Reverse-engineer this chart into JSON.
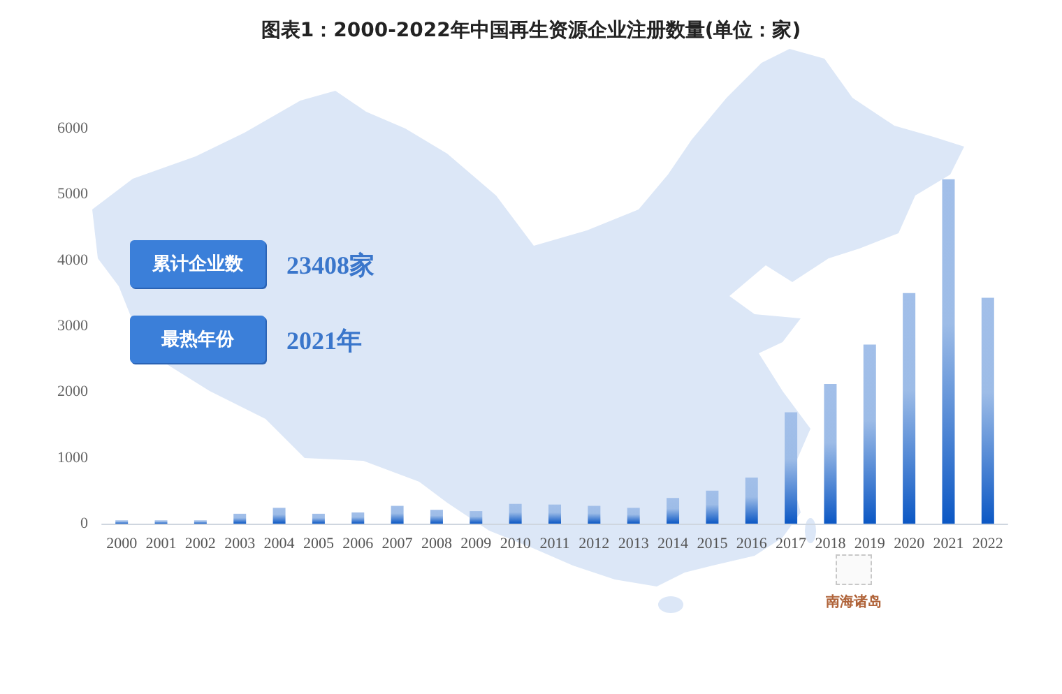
{
  "chart_data": {
    "type": "bar",
    "title": "图表1：2000-2022年中国再生资源企业注册数量(单位：家)",
    "categories": [
      "2000",
      "2001",
      "2002",
      "2003",
      "2004",
      "2005",
      "2006",
      "2007",
      "2008",
      "2009",
      "2010",
      "2011",
      "2012",
      "2013",
      "2014",
      "2015",
      "2016",
      "2017",
      "2018",
      "2019",
      "2020",
      "2021",
      "2022"
    ],
    "values": [
      50,
      50,
      50,
      150,
      240,
      150,
      170,
      270,
      210,
      190,
      300,
      290,
      270,
      240,
      390,
      500,
      700,
      1690,
      2120,
      2720,
      3500,
      5230,
      3430
    ],
    "color": "#0b57c4",
    "ylim": [
      0,
      6000
    ],
    "yticks": [
      0,
      1000,
      2000,
      3000,
      4000,
      5000,
      6000
    ],
    "grid": false,
    "annotations": [
      "累计企业数",
      "23408家",
      "最热年份",
      "2021年",
      "南海诸岛"
    ]
  }
}
